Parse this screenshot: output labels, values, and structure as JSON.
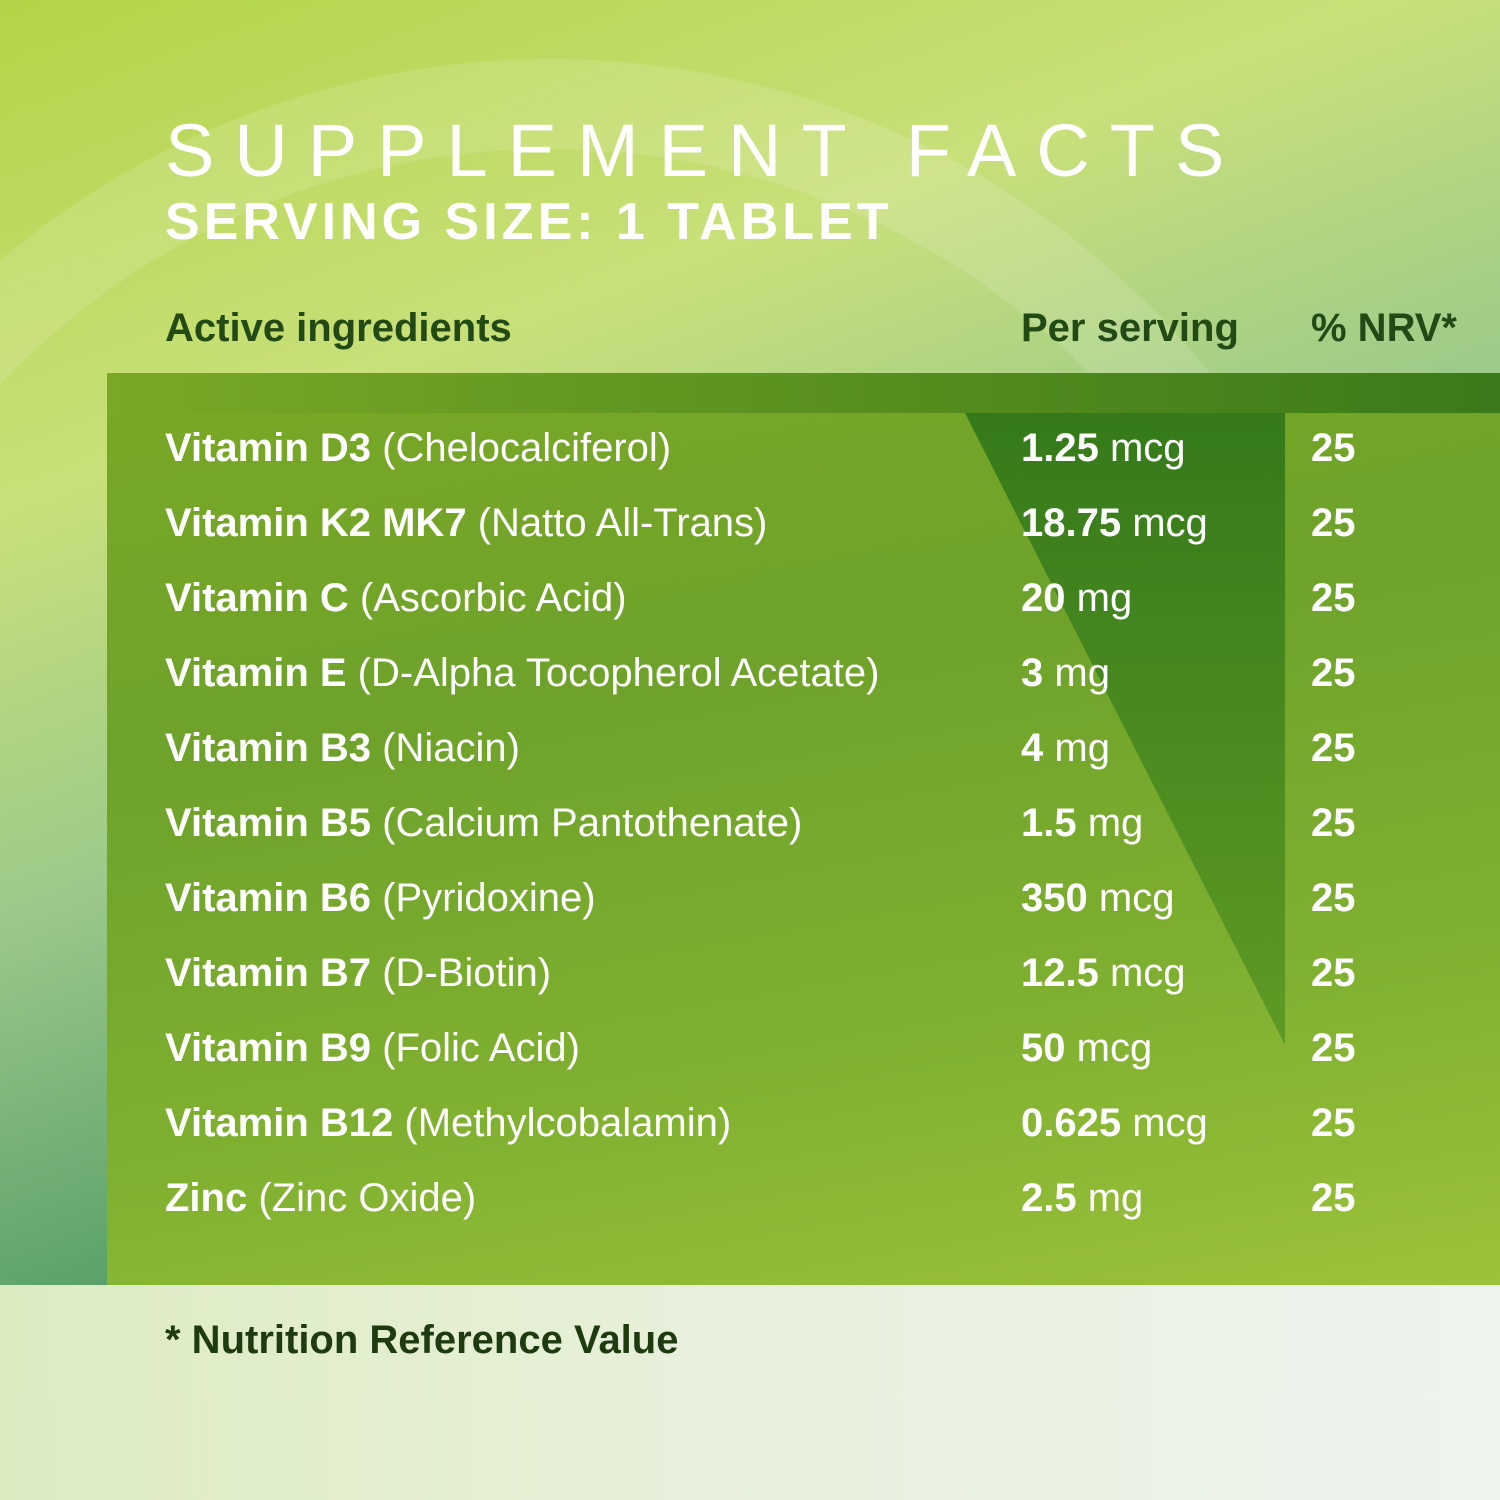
{
  "title": "SUPPLEMENT FACTS",
  "subtitle": "SERVING SIZE: 1 TABLET",
  "headers": {
    "ingredient": "Active ingredients",
    "per_serving": "Per serving",
    "nrv": "% NRV*"
  },
  "rows": [
    {
      "name": "Vitamin D3",
      "source": "(Chelocalciferol)",
      "amount": "1.25",
      "unit": "mcg",
      "nrv": "25"
    },
    {
      "name": "Vitamin K2 MK7",
      "source": "(Natto All-Trans)",
      "amount": "18.75",
      "unit": "mcg",
      "nrv": "25"
    },
    {
      "name": "Vitamin C",
      "source": "(Ascorbic Acid)",
      "amount": "20",
      "unit": "mg",
      "nrv": "25"
    },
    {
      "name": "Vitamin E",
      "source": "(D-Alpha Tocopherol Acetate)",
      "amount": "3",
      "unit": "mg",
      "nrv": "25"
    },
    {
      "name": "Vitamin B3",
      "source": "(Niacin)",
      "amount": "4",
      "unit": "mg",
      "nrv": "25"
    },
    {
      "name": "Vitamin B5",
      "source": "(Calcium Pantothenate)",
      "amount": "1.5",
      "unit": "mg",
      "nrv": "25"
    },
    {
      "name": "Vitamin B6",
      "source": "(Pyridoxine)",
      "amount": "350",
      "unit": "mcg",
      "nrv": "25"
    },
    {
      "name": "Vitamin B7",
      "source": "(D-Biotin)",
      "amount": "12.5",
      "unit": "mcg",
      "nrv": "25"
    },
    {
      "name": "Vitamin B9",
      "source": "(Folic Acid)",
      "amount": "50",
      "unit": "mcg",
      "nrv": "25"
    },
    {
      "name": "Vitamin B12",
      "source": "(Methylcobalamin)",
      "amount": "0.625",
      "unit": "mcg",
      "nrv": "25"
    },
    {
      "name": "Zinc",
      "source": "(Zinc Oxide)",
      "amount": "2.5",
      "unit": "mg",
      "nrv": "25"
    }
  ],
  "footnote": "* Nutrition Reference Value",
  "colors": {
    "panel": "#7aa825",
    "header_text": "#234a14",
    "text": "#ffffff"
  }
}
